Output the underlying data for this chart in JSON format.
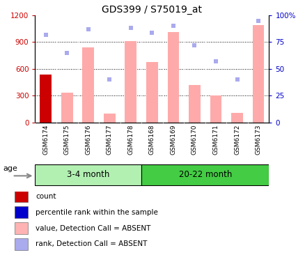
{
  "title": "GDS399 / S75019_at",
  "samples": [
    "GSM6174",
    "GSM6175",
    "GSM6176",
    "GSM6177",
    "GSM6178",
    "GSM6168",
    "GSM6169",
    "GSM6170",
    "GSM6171",
    "GSM6172",
    "GSM6173"
  ],
  "bar_values": [
    540,
    330,
    840,
    100,
    910,
    680,
    1010,
    420,
    300,
    110,
    1090
  ],
  "bar_colors": [
    "#cc0000",
    "#ffaaaa",
    "#ffaaaa",
    "#ffaaaa",
    "#ffaaaa",
    "#ffaaaa",
    "#ffaaaa",
    "#ffaaaa",
    "#ffaaaa",
    "#ffaaaa",
    "#ffaaaa"
  ],
  "rank_values": [
    82,
    65,
    87,
    40,
    88,
    84,
    90,
    72,
    57,
    40,
    95
  ],
  "ylim_left": [
    0,
    1200
  ],
  "ylim_right": [
    0,
    100
  ],
  "yticks_left": [
    0,
    300,
    600,
    900,
    1200
  ],
  "ytick_labels_left": [
    "0",
    "300",
    "600",
    "900",
    "1200"
  ],
  "yticks_right": [
    0,
    25,
    50,
    75,
    100
  ],
  "ytick_labels_right": [
    "0",
    "25",
    "50",
    "75",
    "100%"
  ],
  "groups": [
    {
      "label": "3-4 month",
      "start": 0,
      "end": 5
    },
    {
      "label": "20-22 month",
      "start": 5,
      "end": 11
    }
  ],
  "group_color_light": "#b2f0b2",
  "group_color_dark": "#44cc44",
  "age_label": "age",
  "left_axis_color": "#cc0000",
  "right_axis_color": "#0000cc",
  "rank_color": "#aaaaee",
  "bar_color_absent": "#ffb3b3",
  "count_color": "#cc0000",
  "percentile_color": "#0000cc",
  "tick_bg_color": "#d8d8d8",
  "grid_dotted_vals": [
    300,
    600,
    900
  ]
}
